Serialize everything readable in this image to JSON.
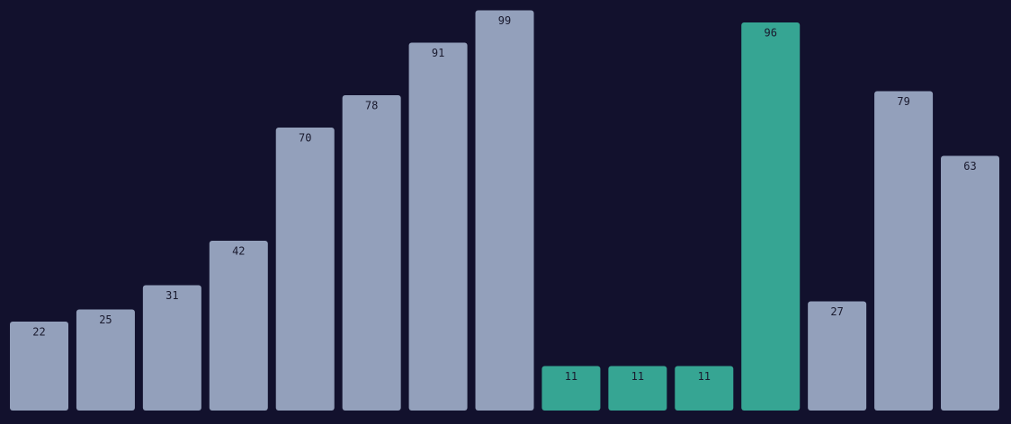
{
  "chart_data": {
    "type": "bar",
    "values": [
      22,
      25,
      31,
      42,
      70,
      78,
      91,
      99,
      11,
      11,
      11,
      96,
      27,
      79,
      63
    ],
    "colors": [
      "#93a0bb",
      "#93a0bb",
      "#93a0bb",
      "#93a0bb",
      "#93a0bb",
      "#93a0bb",
      "#93a0bb",
      "#93a0bb",
      "#36a593",
      "#36a593",
      "#36a593",
      "#36a593",
      "#93a0bb",
      "#93a0bb",
      "#93a0bb"
    ],
    "ylim": [
      0,
      100
    ]
  }
}
